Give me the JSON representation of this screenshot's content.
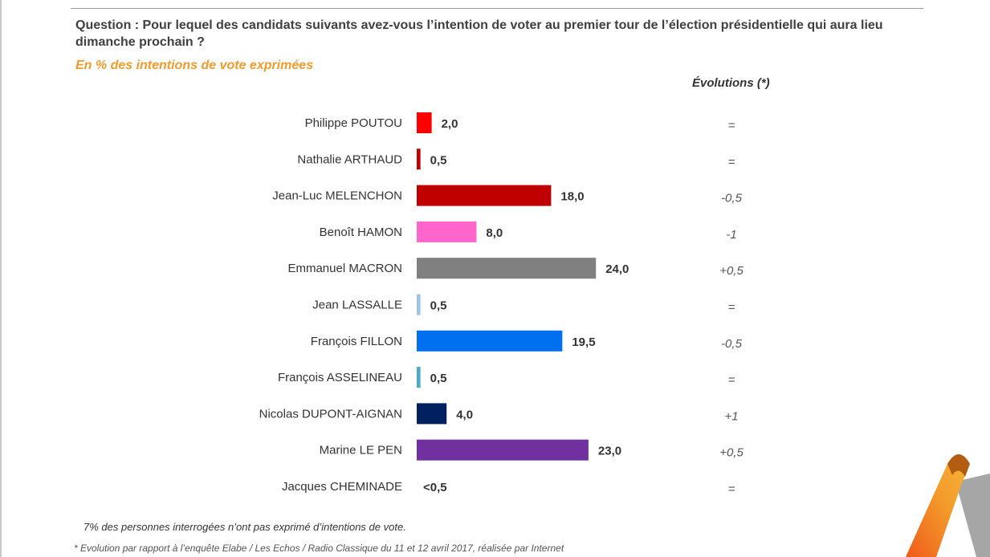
{
  "question": "Question : Pour lequel des candidats suivants avez-vous l’intention de voter au premier tour de l’élection présidentielle qui aura lieu dimanche prochain ?",
  "subtitle": "En %  des intentions de vote exprimées",
  "evolutions_header": "Évolutions (*)",
  "note": "7% des personnes interrogées n’ont pas exprimé d’intentions de vote.",
  "footnote": "* Evolution par rapport à l’enquête Elabe / Les Echos / Radio Classique du 11 et 12 avril 2017, réalisée par Internet",
  "chart_data": {
    "type": "bar",
    "orientation": "horizontal",
    "title": "",
    "xlabel": "",
    "ylabel": "",
    "grid": false,
    "categories": [
      "Philippe POUTOU",
      "Nathalie ARTHAUD",
      "Jean-Luc MELENCHON",
      "Benoît HAMON",
      "Emmanuel MACRON",
      "Jean LASSALLE",
      "François FILLON",
      "François ASSELINEAU",
      "Nicolas DUPONT-AIGNAN",
      "Marine LE PEN",
      "Jacques CHEMINADE"
    ],
    "values": [
      2.0,
      0.5,
      18.0,
      8.0,
      24.0,
      0.5,
      19.5,
      0.5,
      4.0,
      23.0,
      0
    ],
    "value_labels": [
      "2,0",
      "0,5",
      "18,0",
      "8,0",
      "24,0",
      "0,5",
      "19,5",
      "0,5",
      "4,0",
      "23,0",
      "<0,5"
    ],
    "evolutions": [
      "=",
      "=",
      "-0,5",
      "-1",
      "+0,5",
      "=",
      "-0,5",
      "=",
      "+1",
      "+0,5",
      "="
    ],
    "colors": [
      "#ff0000",
      "#c00000",
      "#c00000",
      "#ff66cc",
      "#808080",
      "#9dc3e6",
      "#0070f0",
      "#4bacc6",
      "#002060",
      "#7030a0",
      "#808080"
    ]
  }
}
